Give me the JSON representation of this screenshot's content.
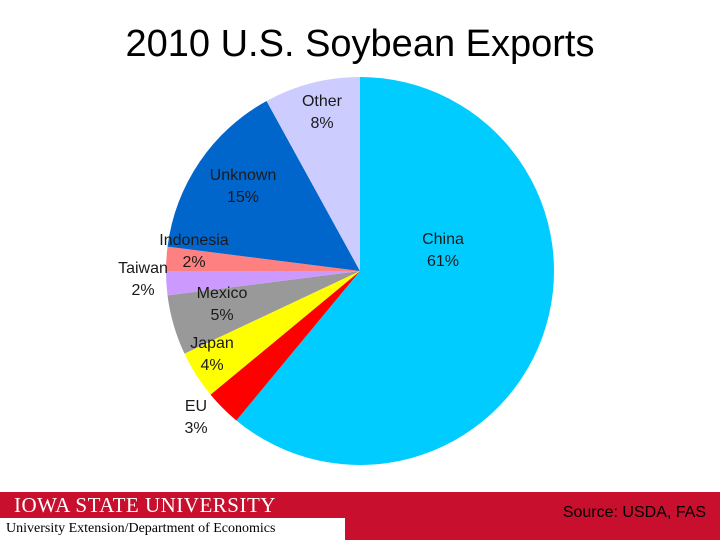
{
  "chart_data": {
    "type": "pie",
    "title": "2010 U.S. Soybean Exports",
    "categories": [
      "China",
      "EU",
      "Japan",
      "Mexico",
      "Taiwan",
      "Indonesia",
      "Unknown",
      "Other"
    ],
    "values": [
      61,
      3,
      4,
      5,
      2,
      2,
      15,
      8
    ],
    "value_labels": [
      "61%",
      "3%",
      "4%",
      "5%",
      "2%",
      "2%",
      "15%",
      "8%"
    ],
    "colors": [
      "#00ccff",
      "#ff0000",
      "#ffff00",
      "#999999",
      "#cc99ff",
      "#ff8080",
      "#0066cc",
      "#ccccff"
    ]
  },
  "footer": {
    "brand": "IOWA STATE UNIVERSITY",
    "department": "University Extension/Department of Economics",
    "source": "Source: USDA, FAS"
  }
}
